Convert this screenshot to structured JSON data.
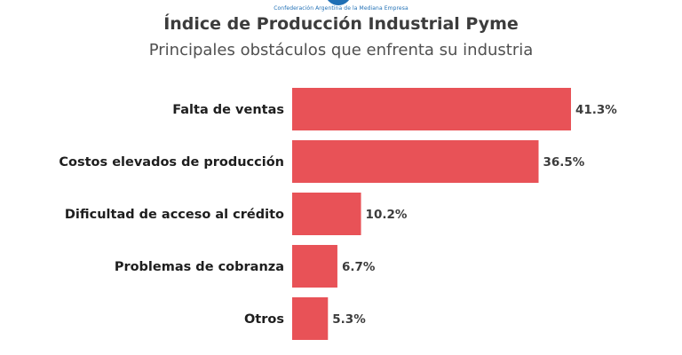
{
  "header": {
    "org_name": "Confederación Argentina de la Mediana Empresa",
    "title": "Índice de Producción Industrial Pyme",
    "subtitle": "Principales obstáculos que enfrenta su industria"
  },
  "chart_data": {
    "type": "bar",
    "orientation": "horizontal",
    "title": "Índice de Producción Industrial Pyme",
    "subtitle": "Principales obstáculos que enfrenta su industria",
    "categories": [
      "Falta de ventas",
      "Costos elevados de producción",
      "Dificultad de acceso al crédito",
      "Problemas de cobranza",
      "Otros"
    ],
    "values": [
      41.3,
      36.5,
      10.2,
      6.7,
      5.3
    ],
    "value_labels": [
      "41.3%",
      "36.5%",
      "10.2%",
      "6.7%",
      "5.3%"
    ],
    "bar_color": "#e85257",
    "xlim": [
      0,
      41.3
    ],
    "grid": false,
    "legend": "none"
  }
}
